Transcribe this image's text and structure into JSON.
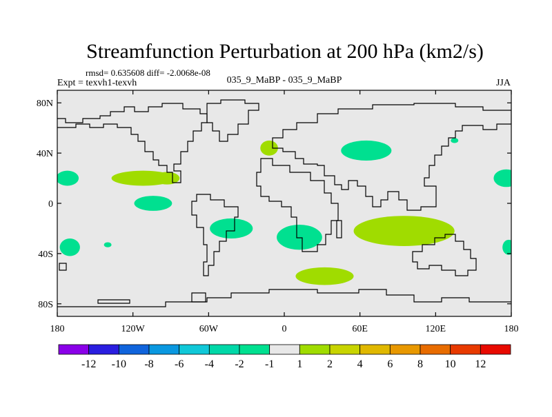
{
  "chart_data": {
    "type": "heatmap",
    "title": "Streamfunction Perturbation at 200 hPa (km2/s)",
    "stats_text": "rmsd= 0.635608 diff= -2.0068e-08",
    "experiment_label": "Expt = texvh1-texvh",
    "case_label": "035_9_MaBP - 035_9_MaBP",
    "season": "JJA",
    "x_range": [
      -180,
      180
    ],
    "y_range": [
      -90,
      90
    ],
    "x_ticks": [
      {
        "value": -180,
        "label": "180"
      },
      {
        "value": -120,
        "label": "120W"
      },
      {
        "value": -60,
        "label": "60W"
      },
      {
        "value": 0,
        "label": "0"
      },
      {
        "value": 60,
        "label": "60E"
      },
      {
        "value": 120,
        "label": "120E"
      },
      {
        "value": 180,
        "label": "180"
      }
    ],
    "y_ticks": [
      {
        "value": 80,
        "label": "80N"
      },
      {
        "value": 40,
        "label": "40N"
      },
      {
        "value": 0,
        "label": "0"
      },
      {
        "value": -40,
        "label": "40S"
      },
      {
        "value": -80,
        "label": "80S"
      }
    ],
    "background_color": "#e8e8e8",
    "colorbar": {
      "colors": [
        "#8a00e8",
        "#2a1ee0",
        "#1064dc",
        "#0a98e0",
        "#10c8d8",
        "#00d8a8",
        "#00e090",
        "#e8e8e8",
        "#a0dc00",
        "#c8d400",
        "#e0b800",
        "#e89800",
        "#e86c00",
        "#e83a00",
        "#e80a00"
      ],
      "labels": [
        "-12",
        "-10",
        "-8",
        "-6",
        "-4",
        "-2",
        "-1",
        "1",
        "2",
        "4",
        "6",
        "8",
        "10",
        "12"
      ]
    },
    "anomalies": [
      {
        "lon": -172,
        "lat": 20,
        "rlon": 9,
        "rlat": 6,
        "level": "-1",
        "color": "#00e090"
      },
      {
        "lon": -112,
        "lat": 20,
        "rlon": 25,
        "rlat": 6,
        "level": "2",
        "color": "#a0dc00"
      },
      {
        "lon": -93,
        "lat": 20,
        "rlon": 10,
        "rlat": 5,
        "level": "2",
        "color": "#a0dc00"
      },
      {
        "lon": -104,
        "lat": 0,
        "rlon": 15,
        "rlat": 6,
        "level": "-1",
        "color": "#00e090"
      },
      {
        "lon": -42,
        "lat": -20,
        "rlon": 17,
        "rlat": 8,
        "level": "-1",
        "color": "#00e090"
      },
      {
        "lon": 12,
        "lat": -27,
        "rlon": 18,
        "rlat": 10,
        "level": "-1",
        "color": "#00e090"
      },
      {
        "lon": -12,
        "lat": 44,
        "rlon": 7,
        "rlat": 6,
        "level": "2",
        "color": "#a0dc00"
      },
      {
        "lon": 65,
        "lat": 42,
        "rlon": 20,
        "rlat": 8,
        "level": "-1",
        "color": "#00e090"
      },
      {
        "lon": 135,
        "lat": 50,
        "rlon": 3,
        "rlat": 2,
        "level": "-1",
        "color": "#00e090"
      },
      {
        "lon": 95,
        "lat": -22,
        "rlon": 40,
        "rlat": 12,
        "level": "2",
        "color": "#a0dc00"
      },
      {
        "lon": 32,
        "lat": -58,
        "rlon": 23,
        "rlat": 7,
        "level": "2",
        "color": "#a0dc00"
      },
      {
        "lon": -170,
        "lat": -35,
        "rlon": 8,
        "rlat": 7,
        "level": "-1",
        "color": "#00e090"
      },
      {
        "lon": -140,
        "lat": -33,
        "rlon": 3,
        "rlat": 2,
        "level": "-1",
        "color": "#00e090"
      },
      {
        "lon": 176,
        "lat": 20,
        "rlon": 10,
        "rlat": 7,
        "level": "-1",
        "color": "#00e090"
      },
      {
        "lon": 178,
        "lat": -35,
        "rlon": 5,
        "rlat": 6,
        "level": "-1",
        "color": "#00e090"
      }
    ]
  }
}
